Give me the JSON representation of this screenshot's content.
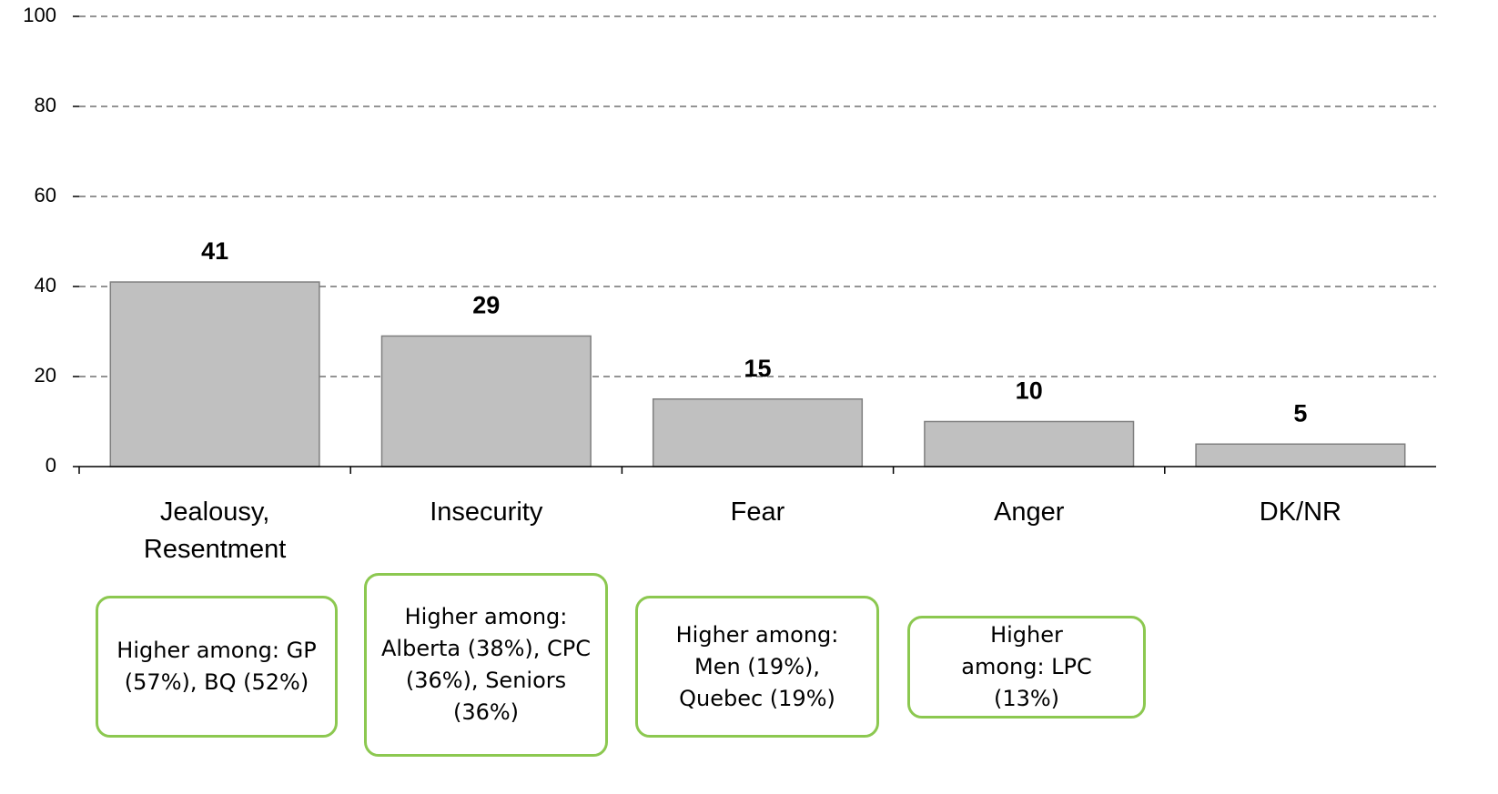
{
  "chart_data": {
    "type": "bar",
    "categories": [
      "Jealousy, Resentment",
      "Insecurity",
      "Fear",
      "Anger",
      "DK/NR"
    ],
    "values": [
      41,
      29,
      15,
      10,
      5
    ],
    "color": "#c0c0c0",
    "ylim": [
      0,
      100
    ],
    "yticks": [
      0,
      20,
      40,
      60,
      80,
      100
    ],
    "grid": true,
    "annotations": [
      "Higher among: GP (57%), BQ (52%)",
      "Higher among: Alberta (38%), CPC (36%), Seniors (36%)",
      "Higher among: Men (19%), Quebec (19%)",
      "Higher among: LPC (13%)"
    ]
  }
}
